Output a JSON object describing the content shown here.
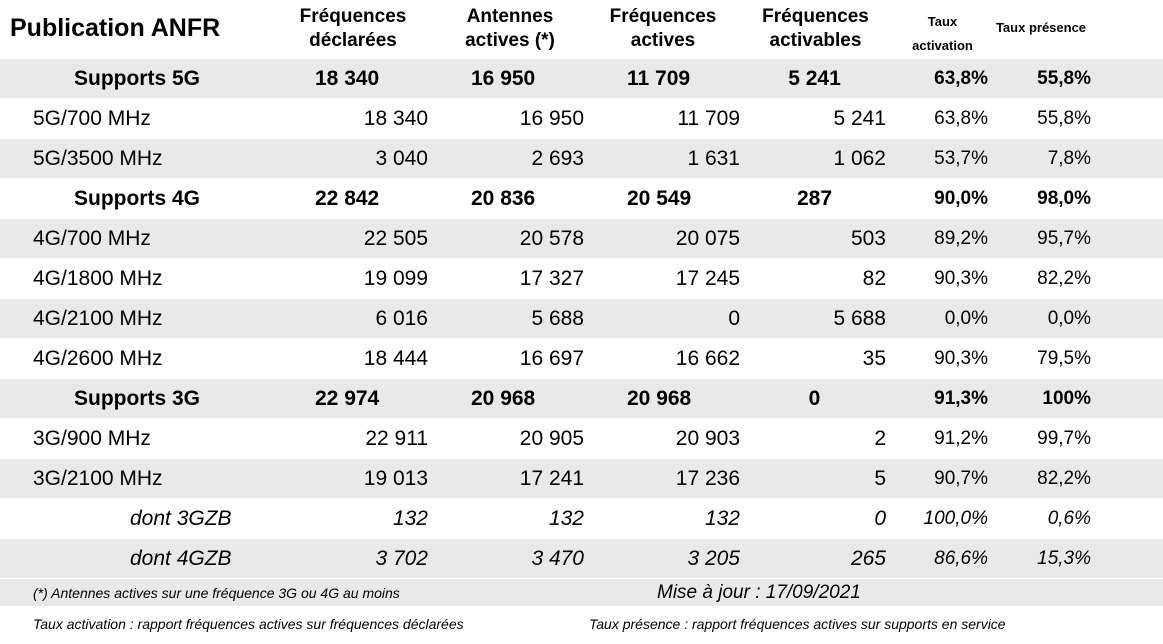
{
  "header": {
    "title": "Publication ANFR",
    "col1": [
      "Fréquences",
      "déclarées"
    ],
    "col2": [
      "Antennes",
      "actives (*)"
    ],
    "col3": [
      "Fréquences",
      "actives"
    ],
    "col4": [
      "Fréquences",
      "activables"
    ],
    "col5": [
      "Taux",
      "activation"
    ],
    "col6": "Taux présence"
  },
  "rows": [
    {
      "kind": "sup",
      "label": "Supports 5G",
      "v1": "18 340",
      "v2": "16 950",
      "v3": "11 709",
      "v4": "5 241",
      "v5": "63,8%",
      "v6": "55,8%"
    },
    {
      "kind": "band",
      "label": "5G/700 MHz",
      "v1": "18 340",
      "v2": "16 950",
      "v3": "11 709",
      "v4": "5 241",
      "v5": "63,8%",
      "v6": "55,8%"
    },
    {
      "kind": "band",
      "label": "5G/3500 MHz",
      "v1": "3 040",
      "v2": "2 693",
      "v3": "1 631",
      "v4": "1 062",
      "v5": "53,7%",
      "v6": "7,8%"
    },
    {
      "kind": "sup",
      "label": "Supports 4G",
      "v1": "22 842",
      "v2": "20 836",
      "v3": "20 549",
      "v4": "287",
      "v5": "90,0%",
      "v6": "98,0%"
    },
    {
      "kind": "band",
      "label": "4G/700 MHz",
      "v1": "22 505",
      "v2": "20 578",
      "v3": "20 075",
      "v4": "503",
      "v5": "89,2%",
      "v6": "95,7%"
    },
    {
      "kind": "band",
      "label": "4G/1800 MHz",
      "v1": "19 099",
      "v2": "17 327",
      "v3": "17 245",
      "v4": "82",
      "v5": "90,3%",
      "v6": "82,2%"
    },
    {
      "kind": "band",
      "label": "4G/2100 MHz",
      "v1": "6 016",
      "v2": "5 688",
      "v3": "0",
      "v4": "5 688",
      "v5": "0,0%",
      "v6": "0,0%"
    },
    {
      "kind": "band",
      "label": "4G/2600 MHz",
      "v1": "18 444",
      "v2": "16 697",
      "v3": "16 662",
      "v4": "35",
      "v5": "90,3%",
      "v6": "79,5%"
    },
    {
      "kind": "sup",
      "label": "Supports 3G",
      "v1": "22 974",
      "v2": "20 968",
      "v3": "20 968",
      "v4": "0",
      "v5": "91,3%",
      "v6": "100%"
    },
    {
      "kind": "band",
      "label": "3G/900 MHz",
      "v1": "22 911",
      "v2": "20 905",
      "v3": "20 903",
      "v4": "2",
      "v5": "91,2%",
      "v6": "99,7%"
    },
    {
      "kind": "band",
      "label": "3G/2100 MHz",
      "v1": "19 013",
      "v2": "17 241",
      "v3": "17 236",
      "v4": "5",
      "v5": "90,7%",
      "v6": "82,2%"
    },
    {
      "kind": "dont",
      "label": "dont 3GZB",
      "v1": "132",
      "v2": "132",
      "v3": "132",
      "v4": "0",
      "v5": "100,0%",
      "v6": "0,6%"
    },
    {
      "kind": "dont",
      "label": "dont 4GZB",
      "v1": "3 702",
      "v2": "3 470",
      "v3": "3 205",
      "v4": "265",
      "v5": "86,6%",
      "v6": "15,3%"
    }
  ],
  "footer": {
    "note": "(*) Antennes actives sur une fréquence 3G ou 4G au moins",
    "update": "Mise à jour : 17/09/2021",
    "def_activation": "Taux activation : rapport fréquences actives sur fréquences déclarées",
    "def_presence": "Taux présence : rapport fréquences actives sur supports en service"
  }
}
